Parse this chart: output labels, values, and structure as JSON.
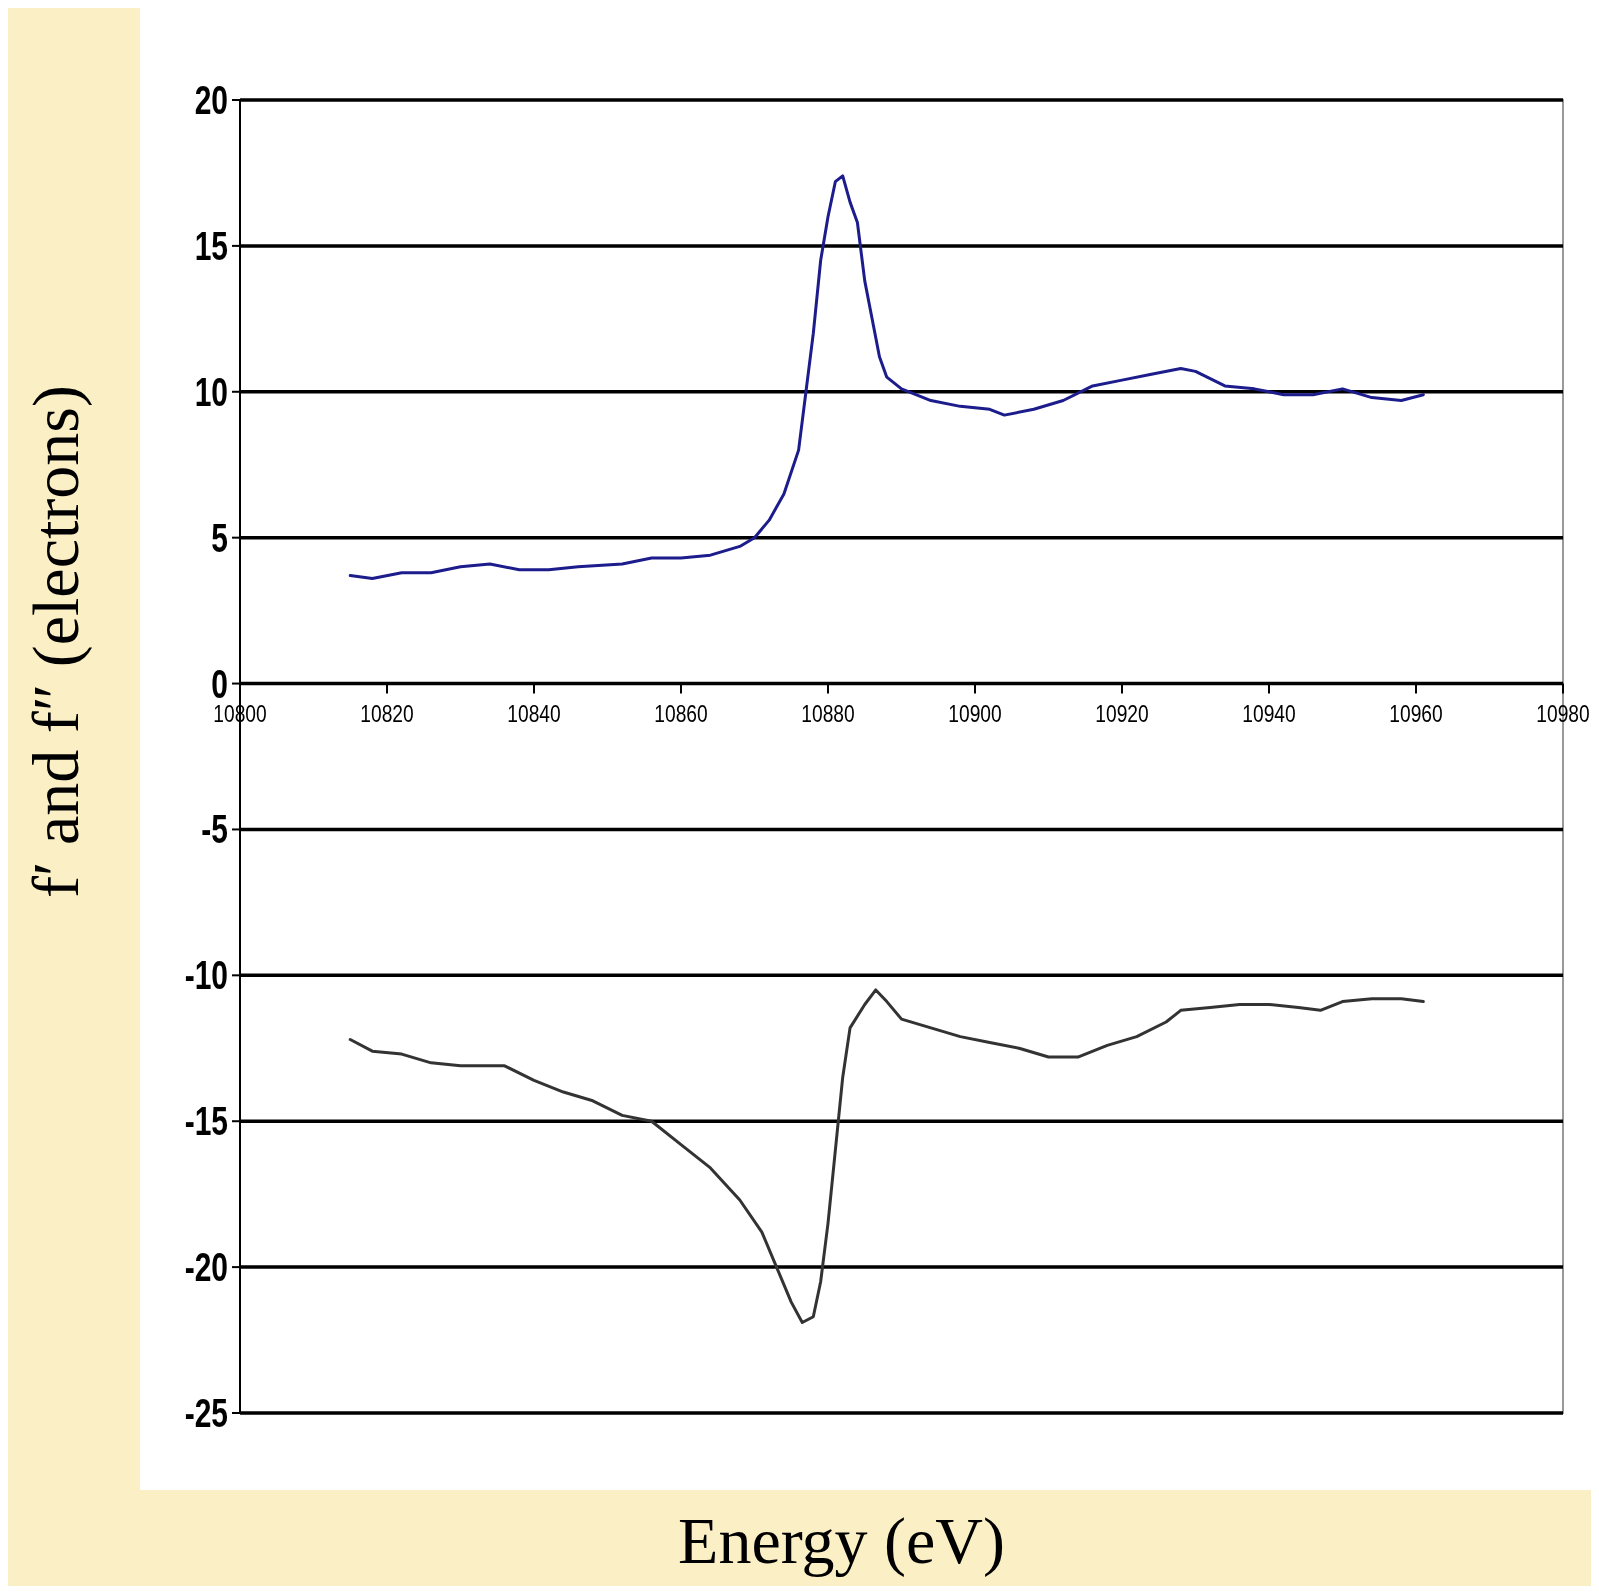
{
  "chart_data": {
    "type": "line",
    "xlabel": "Energy (eV)",
    "ylabel": "f′ and f″ (electrons)",
    "xlim": [
      10800,
      10980
    ],
    "xticks": [
      10800,
      10820,
      10840,
      10860,
      10880,
      10900,
      10920,
      10940,
      10960,
      10980
    ],
    "ylim": [
      -25,
      20
    ],
    "yticks": [
      -25,
      -20,
      -15,
      -10,
      -5,
      0,
      5,
      10,
      15,
      20
    ],
    "grid": "y",
    "marker": "none",
    "line_style": "solid",
    "series": [
      {
        "color": "#1c1c8c",
        "x": [
          10815,
          10818,
          10822,
          10826,
          10830,
          10834,
          10838,
          10842,
          10846,
          10852,
          10856,
          10860,
          10864,
          10868,
          10870,
          10872,
          10874,
          10876,
          10877,
          10878,
          10879,
          10880,
          10881,
          10882,
          10883,
          10884,
          10885,
          10886,
          10887,
          10888,
          10890,
          10894,
          10898,
          10902,
          10904,
          10908,
          10912,
          10916,
          10920,
          10924,
          10928,
          10930,
          10934,
          10938,
          10942,
          10946,
          10950,
          10954,
          10958,
          10961
        ],
        "values": [
          3.7,
          3.6,
          3.8,
          3.8,
          4.0,
          4.1,
          3.9,
          3.9,
          4.0,
          4.1,
          4.3,
          4.3,
          4.4,
          4.7,
          5.0,
          5.6,
          6.5,
          8.0,
          10.0,
          12.0,
          14.5,
          16.0,
          17.2,
          17.4,
          16.5,
          15.8,
          13.8,
          12.5,
          11.2,
          10.5,
          10.1,
          9.7,
          9.5,
          9.4,
          9.2,
          9.4,
          9.7,
          10.2,
          10.4,
          10.6,
          10.8,
          10.7,
          10.2,
          10.1,
          9.9,
          9.9,
          10.1,
          9.8,
          9.7,
          9.9
        ]
      },
      {
        "color": "#333333",
        "x": [
          10815,
          10818,
          10822,
          10826,
          10830,
          10836,
          10840,
          10844,
          10848,
          10852,
          10856,
          10860,
          10864,
          10868,
          10871,
          10873,
          10875,
          10876.5,
          10878,
          10879,
          10880,
          10881,
          10882,
          10883,
          10885,
          10886.5,
          10888,
          10890,
          10894,
          10898,
          10902,
          10906,
          10910,
          10914,
          10918,
          10922,
          10926,
          10928,
          10932,
          10936,
          10940,
          10944,
          10947,
          10950,
          10954,
          10958,
          10961
        ],
        "values": [
          -12.2,
          -12.6,
          -12.7,
          -13.0,
          -13.1,
          -13.1,
          -13.6,
          -14.0,
          -14.3,
          -14.8,
          -15.0,
          -15.8,
          -16.6,
          -17.7,
          -18.8,
          -20.0,
          -21.2,
          -21.9,
          -21.7,
          -20.5,
          -18.5,
          -16.0,
          -13.5,
          -11.8,
          -11.0,
          -10.5,
          -10.9,
          -11.5,
          -11.8,
          -12.1,
          -12.3,
          -12.5,
          -12.8,
          -12.8,
          -12.4,
          -12.1,
          -11.6,
          -11.2,
          -11.1,
          -11.0,
          -11.0,
          -11.1,
          -11.2,
          -10.9,
          -10.8,
          -10.8,
          -10.9
        ]
      }
    ]
  }
}
